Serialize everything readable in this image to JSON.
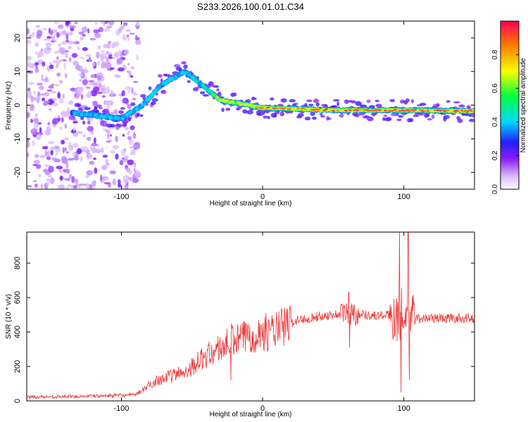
{
  "title": "S233.2026.100.01.01.C34",
  "chart_data": [
    {
      "type": "heatmap",
      "name": "spectrogram",
      "xlabel": "Height of straight line (km)",
      "ylabel": "Frequency (Hz)",
      "xlim": [
        -167,
        150
      ],
      "ylim": [
        -25,
        25
      ],
      "xticks": [
        -100,
        0,
        100
      ],
      "yticks": [
        -20,
        -10,
        0,
        10,
        20
      ],
      "colorbar": {
        "label": "Normalized spectral amplitude",
        "range": [
          0,
          1
        ],
        "ticks": [
          "0.0",
          "0.2",
          "0.4",
          "0.6",
          "0.8"
        ]
      },
      "ridge": [
        {
          "x": -130,
          "f": -2.5,
          "a": 0.4
        },
        {
          "x": -100,
          "f": -4,
          "a": 0.45
        },
        {
          "x": -85,
          "f": 0,
          "a": 0.45
        },
        {
          "x": -72,
          "f": 6,
          "a": 0.45
        },
        {
          "x": -55,
          "f": 10,
          "a": 0.45
        },
        {
          "x": -40,
          "f": 5,
          "a": 0.5
        },
        {
          "x": -30,
          "f": 1.5,
          "a": 0.75
        },
        {
          "x": -10,
          "f": 0,
          "a": 0.85
        },
        {
          "x": 0,
          "f": -0.8,
          "a": 0.9
        },
        {
          "x": 50,
          "f": -1.5,
          "a": 0.95
        },
        {
          "x": 100,
          "f": -1.5,
          "a": 0.95
        },
        {
          "x": 150,
          "f": -1.8,
          "a": 0.95
        }
      ]
    },
    {
      "type": "line",
      "name": "snr",
      "xlabel": "Height of straight line (km)",
      "ylabel": "SNR (10 * v/v)",
      "xlim": [
        -167,
        150
      ],
      "ylim": [
        0,
        980
      ],
      "xticks": [
        -100,
        0,
        100
      ],
      "yticks": [
        0,
        200,
        400,
        600,
        800
      ],
      "color": "#ee3333",
      "trend": [
        {
          "x": -167,
          "y": 22
        },
        {
          "x": -120,
          "y": 28
        },
        {
          "x": -90,
          "y": 35
        },
        {
          "x": -75,
          "y": 120
        },
        {
          "x": -55,
          "y": 170
        },
        {
          "x": -40,
          "y": 260
        },
        {
          "x": -25,
          "y": 330
        },
        {
          "x": -10,
          "y": 380
        },
        {
          "x": 10,
          "y": 410
        },
        {
          "x": 25,
          "y": 470
        },
        {
          "x": 40,
          "y": 490
        },
        {
          "x": 60,
          "y": 510
        },
        {
          "x": 80,
          "y": 495
        },
        {
          "x": 98,
          "y": 500
        },
        {
          "x": 110,
          "y": 480
        },
        {
          "x": 150,
          "y": 480
        }
      ],
      "spikes": [
        {
          "x": 97,
          "y": 980
        },
        {
          "x": 98,
          "y": 50
        },
        {
          "x": 103,
          "y": 980
        },
        {
          "x": 104,
          "y": 120
        },
        {
          "x": 61,
          "y": 630
        },
        {
          "x": 61.5,
          "y": 310
        },
        {
          "x": -22,
          "y": 450
        },
        {
          "x": -22.5,
          "y": 120
        }
      ]
    }
  ]
}
